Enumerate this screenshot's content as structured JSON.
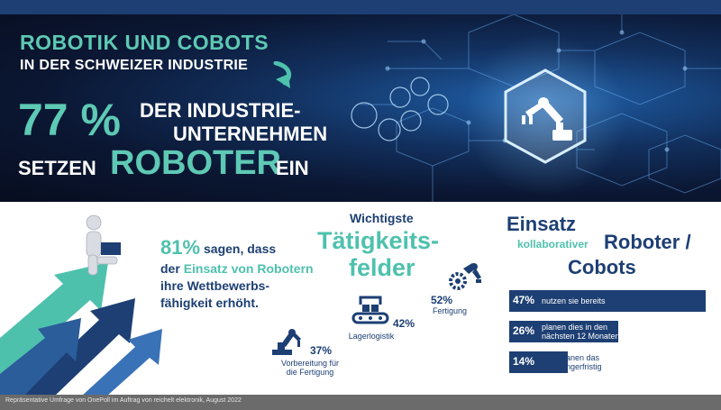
{
  "hero": {
    "title_line1": "ROBOTIK UND COBOTS",
    "title_line2": "IN DER SCHWEIZER INDUSTRIE",
    "percent": "77 %",
    "line1": "DER INDUSTRIE-",
    "line2": "UNTERNEHMEN",
    "line3_pre": "SETZEN",
    "line3_highlight": "ROBOTER",
    "line3_post": "EIN"
  },
  "stat81": {
    "percent": "81%",
    "line1": "sagen, dass",
    "line2_pre": "der",
    "line2_highlight": "Einsatz von Robotern",
    "line3": "ihre Wettbewerbs-",
    "line4": "fähigkeit erhöht."
  },
  "taetigkeitsfelder": {
    "title_line1": "Wichtigste",
    "title_line2": "Tätigkeits-",
    "title_line3": "felder",
    "fields": [
      {
        "percent": "37%",
        "label_line1": "Vorbereitung für",
        "label_line2": "die Fertigung",
        "value": 37,
        "icon": "robot-arm-icon"
      },
      {
        "percent": "42%",
        "label_line1": "Lagerlogistik",
        "label_line2": "",
        "value": 42,
        "icon": "conveyor-icon"
      },
      {
        "percent": "52%",
        "label_line1": "Fertigung",
        "label_line2": "",
        "value": 52,
        "icon": "gears-robot-icon"
      }
    ]
  },
  "einsatz": {
    "title_line1": "Einsatz",
    "title_sub": "kollaborativer",
    "title_line2": "Roboter /",
    "title_line3": "Cobots",
    "bars": [
      {
        "percent": "47%",
        "value": 47,
        "text_line1": "nutzen sie bereits",
        "text_line2": ""
      },
      {
        "percent": "26%",
        "value": 26,
        "text_line1": "planen dies in den",
        "text_line2": "nächsten 12 Monaten"
      },
      {
        "percent": "14%",
        "value": 14,
        "text_line1": "planen das",
        "text_line2": "längerfristig"
      }
    ]
  },
  "footer": {
    "text": "Repräsentative Umfrage von OnePoll im Auftrag von reichelt elektronik, August 2022"
  },
  "colors": {
    "navy": "#1d3f73",
    "teal": "#4ec1ad",
    "hero_dark": "#0b1733",
    "footer_gray": "#6b6b6b"
  }
}
